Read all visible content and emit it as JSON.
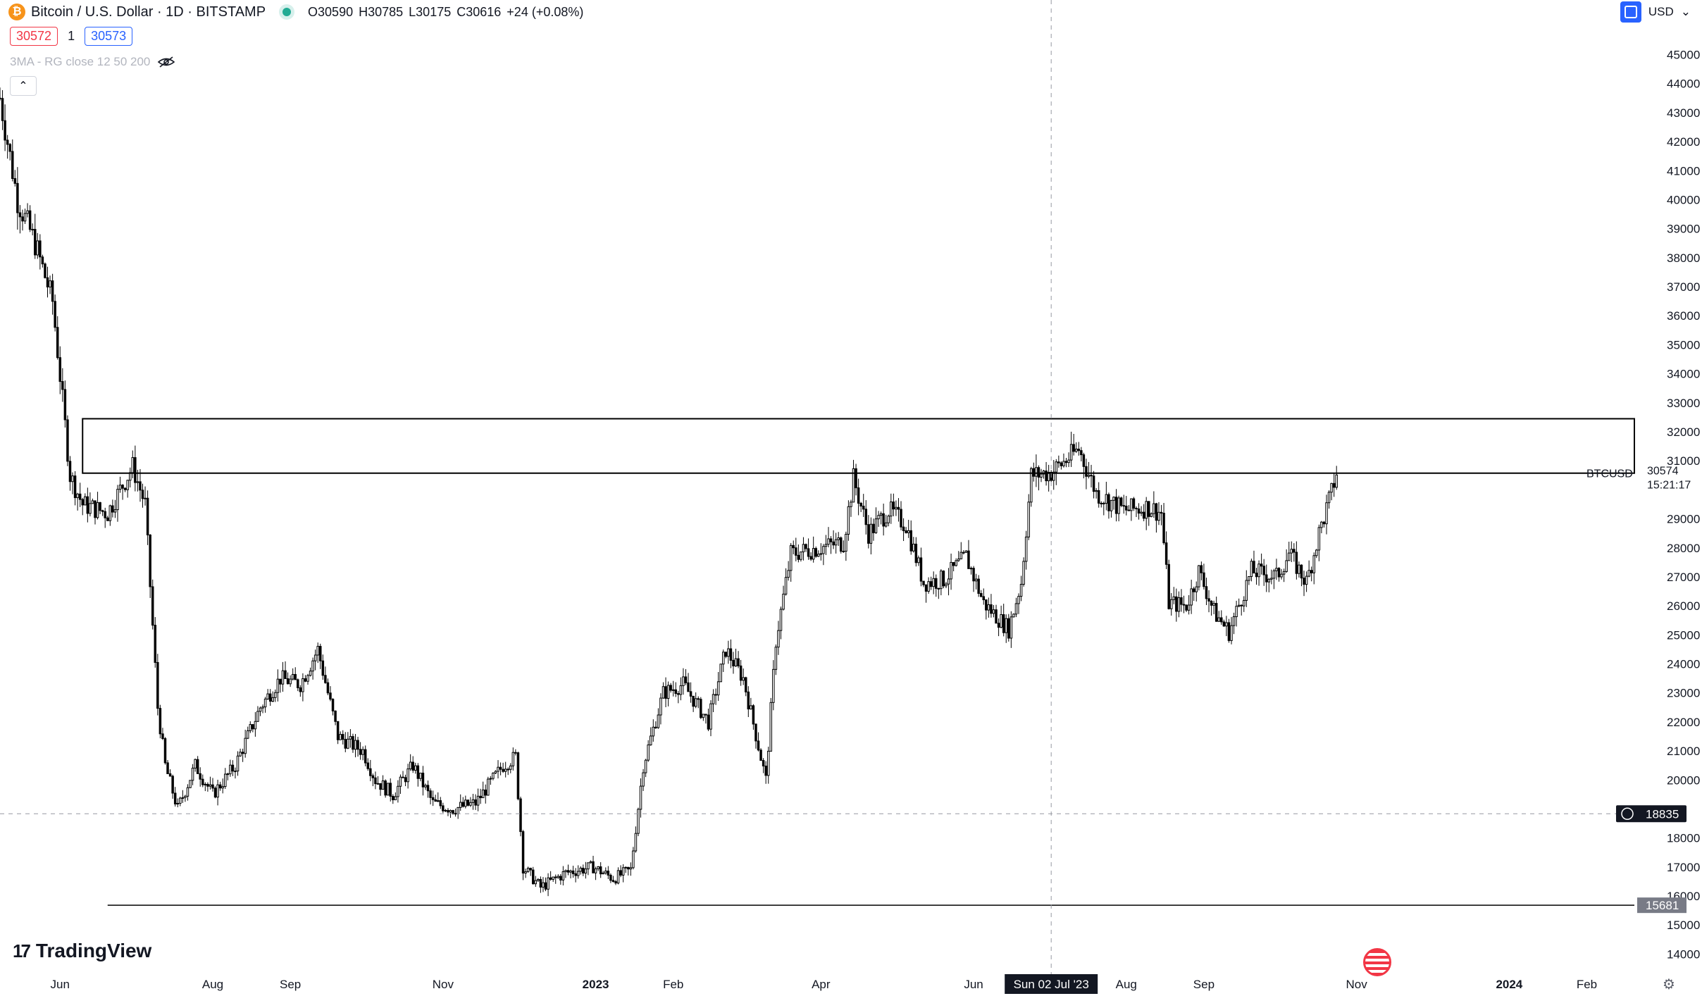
{
  "header": {
    "symbol_title": "Bitcoin / U.S. Dollar · 1D · BITSTAMP",
    "coin_glyph": "₿",
    "open": "O30590",
    "high": "H30785",
    "low": "L30175",
    "close": "C30616",
    "change": "+24 (+0.08%)",
    "sell_price": "30572",
    "spread": "1",
    "buy_price": "30573",
    "indicator_label": "3MA - RG close 12 50 200",
    "collapse_icon": "chevron-up-icon",
    "currency": "USD"
  },
  "footer": {
    "brand": "TradingView",
    "brand_mark": "17"
  },
  "colors": {
    "up": "#ffffff",
    "candle_border": "#000000",
    "crosshair": "#9598a1",
    "label_bg": "#131722"
  },
  "chart_data": {
    "type": "candlestick",
    "symbol": "BTCUSD",
    "ylim": [
      13500,
      46300
    ],
    "y_ticks": [
      14000,
      15000,
      16000,
      17000,
      18000,
      20000,
      21000,
      22000,
      23000,
      24000,
      25000,
      26000,
      27000,
      28000,
      29000,
      31000,
      32000,
      33000,
      34000,
      35000,
      36000,
      37000,
      38000,
      39000,
      40000,
      41000,
      42000,
      43000,
      44000,
      45000
    ],
    "x_labels": [
      {
        "label": "Jun",
        "date": "2022-06-01"
      },
      {
        "label": "Aug",
        "date": "2022-08-01"
      },
      {
        "label": "Sep",
        "date": "2022-09-01"
      },
      {
        "label": "Nov",
        "date": "2022-11-01"
      },
      {
        "label": "2023",
        "date": "2023-01-01"
      },
      {
        "label": "Feb",
        "date": "2023-02-01"
      },
      {
        "label": "Apr",
        "date": "2023-04-01"
      },
      {
        "label": "Jun",
        "date": "2023-06-01"
      },
      {
        "label": "Aug",
        "date": "2023-08-01"
      },
      {
        "label": "Sep",
        "date": "2023-09-01"
      },
      {
        "label": "Nov",
        "date": "2023-11-01"
      },
      {
        "label": "2024",
        "date": "2024-01-01"
      },
      {
        "label": "Feb",
        "date": "2024-02-01"
      }
    ],
    "x_range": [
      "2022-05-08",
      "2024-02-20"
    ],
    "price_path": [
      [
        "2022-05-08",
        43500
      ],
      [
        "2022-05-15",
        40000
      ],
      [
        "2022-05-22",
        38500
      ],
      [
        "2022-05-29",
        36500
      ],
      [
        "2022-06-05",
        30500
      ],
      [
        "2022-06-10",
        29500
      ],
      [
        "2022-06-20",
        29200
      ],
      [
        "2022-06-30",
        30800
      ],
      [
        "2022-07-05",
        29500
      ],
      [
        "2022-07-10",
        22500
      ],
      [
        "2022-07-13",
        20500
      ],
      [
        "2022-07-18",
        19000
      ],
      [
        "2022-07-25",
        20500
      ],
      [
        "2022-08-01",
        19500
      ],
      [
        "2022-08-10",
        20500
      ],
      [
        "2022-08-20",
        22500
      ],
      [
        "2022-08-28",
        23500
      ],
      [
        "2022-09-05",
        23300
      ],
      [
        "2022-09-12",
        24500
      ],
      [
        "2022-09-20",
        21500
      ],
      [
        "2022-09-30",
        21000
      ],
      [
        "2022-10-05",
        20000
      ],
      [
        "2022-10-12",
        19500
      ],
      [
        "2022-10-20",
        20500
      ],
      [
        "2022-10-28",
        19200
      ],
      [
        "2022-11-05",
        19000
      ],
      [
        "2022-11-14",
        19200
      ],
      [
        "2022-11-25",
        20500
      ],
      [
        "2022-11-30",
        20800
      ],
      [
        "2022-12-03",
        17000
      ],
      [
        "2022-12-10",
        16300
      ],
      [
        "2022-12-20",
        16800
      ],
      [
        "2022-12-31",
        17000
      ],
      [
        "2023-01-08",
        16600
      ],
      [
        "2023-01-15",
        16900
      ],
      [
        "2023-01-20",
        20500
      ],
      [
        "2023-01-28",
        23000
      ],
      [
        "2023-02-05",
        23300
      ],
      [
        "2023-02-15",
        22000
      ],
      [
        "2023-02-22",
        24500
      ],
      [
        "2023-03-01",
        23500
      ],
      [
        "2023-03-10",
        20000
      ],
      [
        "2023-03-14",
        24800
      ],
      [
        "2023-03-20",
        27800
      ],
      [
        "2023-03-31",
        28000
      ],
      [
        "2023-04-10",
        28200
      ],
      [
        "2023-04-14",
        30400
      ],
      [
        "2023-04-20",
        28500
      ],
      [
        "2023-04-28",
        29300
      ],
      [
        "2023-05-05",
        28800
      ],
      [
        "2023-05-12",
        26800
      ],
      [
        "2023-05-20",
        26900
      ],
      [
        "2023-05-29",
        27700
      ],
      [
        "2023-06-05",
        26100
      ],
      [
        "2023-06-15",
        25200
      ],
      [
        "2023-06-20",
        26800
      ],
      [
        "2023-06-24",
        30500
      ],
      [
        "2023-07-02",
        30600
      ],
      [
        "2023-07-13",
        31400
      ],
      [
        "2023-07-20",
        29900
      ],
      [
        "2023-07-31",
        29300
      ],
      [
        "2023-08-10",
        29400
      ],
      [
        "2023-08-15",
        29200
      ],
      [
        "2023-08-18",
        26100
      ],
      [
        "2023-08-25",
        26000
      ],
      [
        "2023-08-30",
        27200
      ],
      [
        "2023-09-05",
        25800
      ],
      [
        "2023-09-11",
        25100
      ],
      [
        "2023-09-20",
        27200
      ],
      [
        "2023-09-30",
        27000
      ],
      [
        "2023-10-05",
        27800
      ],
      [
        "2023-10-12",
        26800
      ],
      [
        "2023-10-17",
        28500
      ],
      [
        "2023-10-22",
        29900
      ],
      [
        "2023-10-24",
        30600
      ]
    ],
    "annotations": {
      "resistance_box": {
        "date_start": "2022-06-10",
        "date_end": "2024-02-20",
        "price_low": 30574,
        "price_high": 32450
      },
      "support_line": {
        "price": 15681,
        "date_start": "2022-06-20",
        "label": "15681"
      },
      "crosshair": {
        "date": "2023-07-02",
        "date_label": "Sun 02 Jul '23",
        "price": 18835,
        "price_label": "18835"
      },
      "last_price": {
        "symbol": "BTCUSD",
        "price_label": "30574",
        "countdown": "15:21:17",
        "price": 30574
      }
    }
  }
}
